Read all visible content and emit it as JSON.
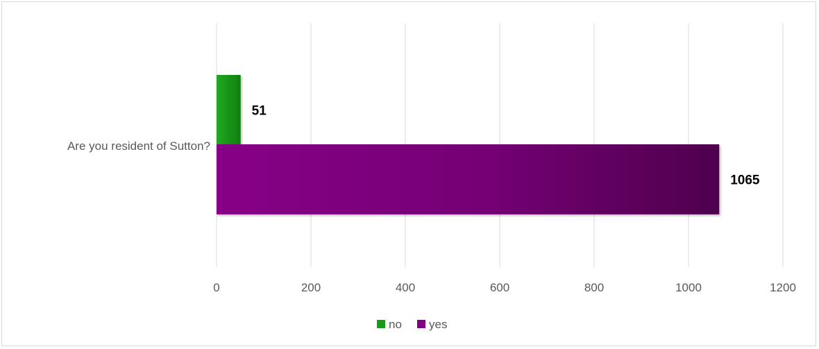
{
  "chart_data": {
    "type": "bar",
    "orientation": "horizontal",
    "categories": [
      "Are you resident of Sutton?"
    ],
    "series": [
      {
        "name": "no",
        "values": [
          51
        ],
        "color": "#1a9a1a"
      },
      {
        "name": "yes",
        "values": [
          1065
        ],
        "color": "#800080"
      }
    ],
    "xlim": [
      0,
      1200
    ],
    "xticks": [
      "0",
      "200",
      "400",
      "600",
      "800",
      "1000",
      "1200"
    ],
    "data_labels": [
      "51",
      "1065"
    ],
    "grid": true,
    "legend": "bottom"
  }
}
